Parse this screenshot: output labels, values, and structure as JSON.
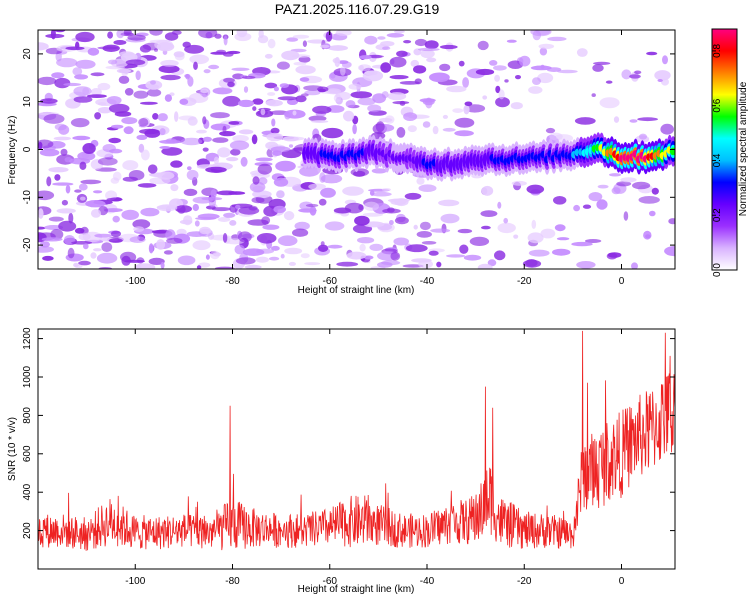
{
  "title": "PAZ1.2025.116.07.29.G19",
  "chart_data": [
    {
      "type": "heatmap",
      "xlabel": "Height of straight line (km)",
      "ylabel": "Frequency (Hz)",
      "xlim": [
        -120,
        11
      ],
      "ylim": [
        -25,
        25
      ],
      "xticks": [
        -100,
        -80,
        -60,
        -40,
        -20,
        0
      ],
      "yticks": [
        -20,
        -10,
        0,
        10,
        20
      ],
      "colorbar": {
        "label": "Normalized spectral amplitude",
        "range": [
          0,
          0.88
        ],
        "ticks": [
          0,
          0.2,
          0.4,
          0.6,
          0.8
        ],
        "colormap": [
          "#ffffff",
          "#d9b3ff",
          "#9b30ff",
          "#6600ff",
          "#0000ff",
          "#00bfff",
          "#00ffff",
          "#00ff00",
          "#ffff00",
          "#ff8000",
          "#ff0000",
          "#ff0080"
        ]
      },
      "signal_ridge": {
        "description_points_x": [
          -65,
          -60,
          -55,
          -50,
          -45,
          -40,
          -35,
          -30,
          -25,
          -20,
          -15,
          -10,
          -5,
          0,
          5,
          10
        ],
        "frequency": [
          -1,
          -1.5,
          -1,
          -0.5,
          -2,
          -3,
          -3,
          -2,
          -2,
          -2,
          -1.5,
          -1,
          0.5,
          -1.5,
          -1.5,
          -0.5
        ],
        "peak_amplitude": [
          0.25,
          0.3,
          0.3,
          0.25,
          0.2,
          0.3,
          0.25,
          0.25,
          0.3,
          0.3,
          0.35,
          0.35,
          0.55,
          0.85,
          0.85,
          0.6
        ]
      },
      "background_amplitude": 0.1
    },
    {
      "type": "line",
      "xlabel": "Height of straight line (km)",
      "ylabel": "SNR (10 * v/v)",
      "xlim": [
        -120,
        11
      ],
      "ylim": [
        0,
        1250
      ],
      "xticks": [
        -100,
        -80,
        -60,
        -40,
        -20,
        0
      ],
      "yticks": [
        200,
        400,
        600,
        800,
        1000,
        1200
      ],
      "series": [
        {
          "color": "#ee2222",
          "x": [
            -120,
            -115,
            -110,
            -105,
            -100,
            -95,
            -90,
            -85,
            -80,
            -75,
            -70,
            -65,
            -60,
            -55,
            -50,
            -45,
            -40,
            -35,
            -30,
            -27,
            -25,
            -20,
            -15,
            -10,
            -8,
            -5,
            -2,
            0,
            3,
            6,
            9,
            11
          ],
          "y": [
            200,
            200,
            180,
            250,
            190,
            190,
            200,
            190,
            230,
            210,
            200,
            200,
            220,
            250,
            230,
            200,
            200,
            240,
            250,
            380,
            250,
            200,
            200,
            180,
            480,
            520,
            580,
            600,
            680,
            720,
            800,
            820
          ],
          "noise_amplitude": [
            90,
            90,
            90,
            130,
            90,
            90,
            90,
            90,
            140,
            100,
            90,
            90,
            100,
            140,
            110,
            90,
            90,
            110,
            130,
            200,
            140,
            100,
            90,
            80,
            200,
            220,
            220,
            230,
            220,
            230,
            240,
            240
          ],
          "spikes": [
            {
              "x": -80.5,
              "y": 850
            },
            {
              "x": -28,
              "y": 950
            },
            {
              "x": -26.5,
              "y": 840
            },
            {
              "x": -8,
              "y": 1240
            },
            {
              "x": -7,
              "y": 970
            },
            {
              "x": 9,
              "y": 1230
            },
            {
              "x": 10,
              "y": 1110
            }
          ]
        }
      ]
    }
  ]
}
